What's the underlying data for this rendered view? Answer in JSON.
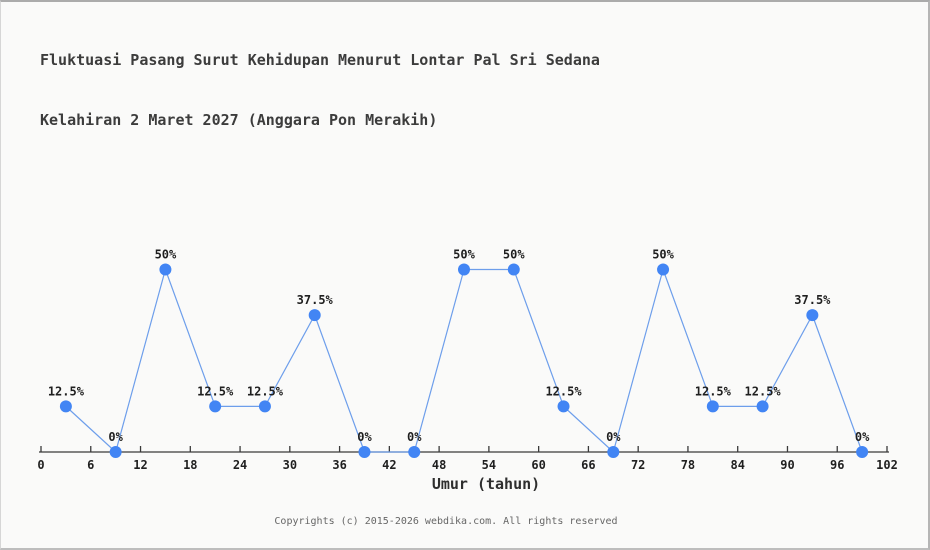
{
  "title": {
    "line1": "Fluktuasi Pasang Surut Kehidupan Menurut Lontar Pal Sri Sedana",
    "line2": "Kelahiran 2 Maret 2027 (Anggara Pon Merakih)"
  },
  "footer": {
    "copyright": "Copyrights (c) 2015-2026 webdika.com. All rights reserved"
  },
  "chart_data": {
    "type": "line",
    "title": "Fluktuasi Pasang Surut Kehidupan Menurut Lontar Pal Sri Sedana Kelahiran 2 Maret 2027 (Anggara Pon Merakih)",
    "xlabel": "Umur (tahun)",
    "ylabel": "",
    "x": [
      3,
      9,
      15,
      21,
      27,
      33,
      39,
      45,
      51,
      57,
      63,
      69,
      75,
      81,
      87,
      93,
      99
    ],
    "values": [
      12.5,
      0,
      50,
      12.5,
      12.5,
      37.5,
      0,
      0,
      50,
      50,
      12.5,
      0,
      50,
      12.5,
      12.5,
      37.5,
      0
    ],
    "point_labels": [
      "12.5%",
      "0%",
      "50%",
      "12.5%",
      "12.5%",
      "37.5%",
      "0%",
      "0%",
      "50%",
      "50%",
      "12.5%",
      "0%",
      "50%",
      "12.5%",
      "12.5%",
      "37.5%",
      "0%"
    ],
    "x_ticks": [
      0,
      6,
      12,
      18,
      24,
      30,
      36,
      42,
      48,
      54,
      60,
      66,
      72,
      78,
      84,
      90,
      96,
      102
    ],
    "xlim": [
      0,
      102
    ],
    "ylim": [
      0,
      100
    ],
    "grid": false,
    "legend": false,
    "colors": {
      "marker": "#4285f4",
      "line": "#6d9eeb",
      "axis": "#3a3a3a",
      "tick_label": "#1f1f1f",
      "data_label": "#1f1f1f"
    }
  }
}
